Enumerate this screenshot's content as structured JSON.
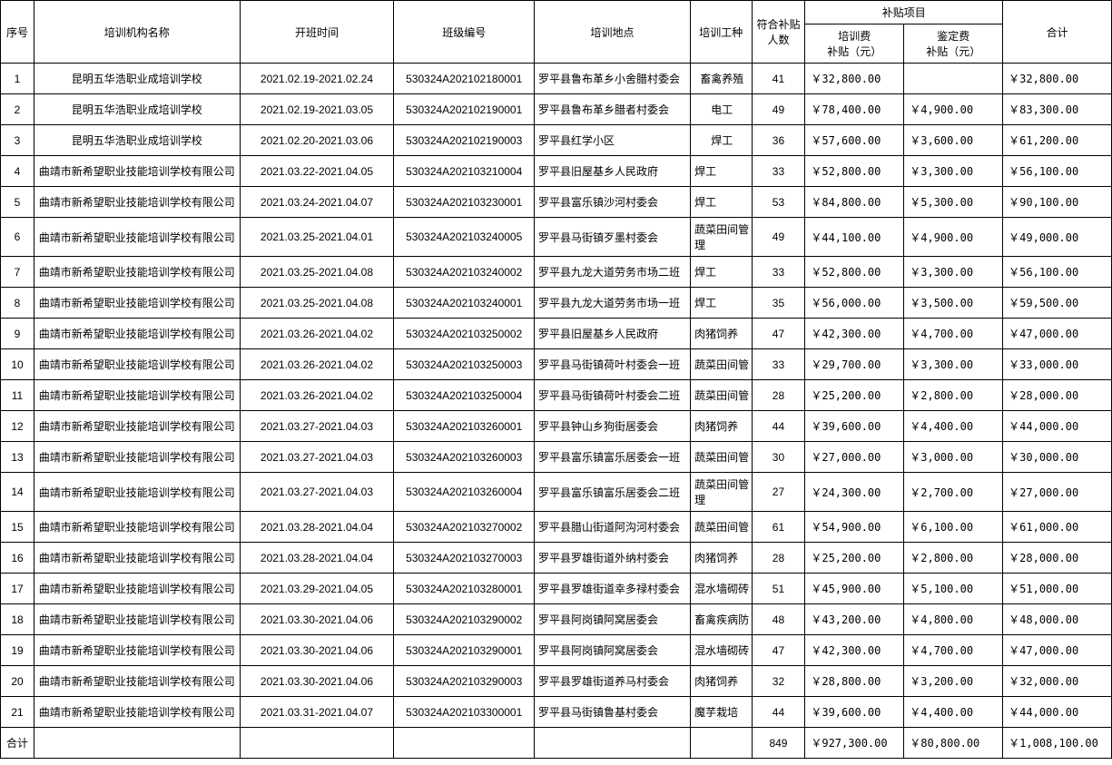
{
  "headers": {
    "seq": "序号",
    "org": "培训机构名称",
    "time": "开班时间",
    "class": "班级编号",
    "loc": "培训地点",
    "job": "培训工种",
    "num": "符合补贴人数",
    "subsidy_group": "补贴项目",
    "fee1": "培训费\n补贴（元）",
    "fee2": "鉴定费\n补贴（元）",
    "total": "合计"
  },
  "footer_label": "合计",
  "footer": {
    "num": "849",
    "fee1": "￥927,300.00",
    "fee2": "￥80,800.00",
    "total": "￥1,008,100.00"
  },
  "rows": [
    {
      "seq": "1",
      "org": "昆明五华浩职业成培训学校",
      "time": "2021.02.19-2021.02.24",
      "class": "530324A202102180001",
      "loc": "罗平县鲁布革乡小舍腊村委会",
      "job": "畜禽养殖",
      "job_center": true,
      "num": "41",
      "fee1": "￥32,800.00",
      "fee2": "",
      "total": "￥32,800.00"
    },
    {
      "seq": "2",
      "org": "昆明五华浩职业成培训学校",
      "time": "2021.02.19-2021.03.05",
      "class": "530324A202102190001",
      "loc": "罗平县鲁布革乡腊者村委会",
      "job": "电工",
      "job_center": true,
      "num": "49",
      "fee1": "￥78,400.00",
      "fee2": "￥4,900.00",
      "total": "￥83,300.00"
    },
    {
      "seq": "3",
      "org": "昆明五华浩职业成培训学校",
      "time": "2021.02.20-2021.03.06",
      "class": "530324A202102190003",
      "loc": "罗平县红学小区",
      "job": "焊工",
      "job_center": true,
      "num": "36",
      "fee1": "￥57,600.00",
      "fee2": "￥3,600.00",
      "total": "￥61,200.00"
    },
    {
      "seq": "4",
      "org": "曲靖市新希望职业技能培训学校有限公司",
      "time": "2021.03.22-2021.04.05",
      "class": "530324A202103210004",
      "loc": "罗平县旧屋基乡人民政府",
      "job": "焊工",
      "num": "33",
      "fee1": "￥52,800.00",
      "fee2": "￥3,300.00",
      "total": "￥56,100.00"
    },
    {
      "seq": "5",
      "org": "曲靖市新希望职业技能培训学校有限公司",
      "time": "2021.03.24-2021.04.07",
      "class": "530324A202103230001",
      "loc": "罗平县富乐镇沙河村委会",
      "job": "焊工",
      "num": "53",
      "fee1": "￥84,800.00",
      "fee2": "￥5,300.00",
      "total": "￥90,100.00"
    },
    {
      "seq": "6",
      "org": "曲靖市新希望职业技能培训学校有限公司",
      "time": "2021.03.25-2021.04.01",
      "class": "530324A202103240005",
      "loc": "罗平县马街镇歹墨村委会",
      "job": "蔬菜田间管理",
      "num": "49",
      "fee1": "￥44,100.00",
      "fee2": "￥4,900.00",
      "total": "￥49,000.00"
    },
    {
      "seq": "7",
      "org": "曲靖市新希望职业技能培训学校有限公司",
      "time": "2021.03.25-2021.04.08",
      "class": "530324A202103240002",
      "loc": "罗平县九龙大道劳务市场二班",
      "job": "焊工",
      "num": "33",
      "fee1": "￥52,800.00",
      "fee2": "￥3,300.00",
      "total": "￥56,100.00"
    },
    {
      "seq": "8",
      "org": "曲靖市新希望职业技能培训学校有限公司",
      "time": "2021.03.25-2021.04.08",
      "class": "530324A202103240001",
      "loc": "罗平县九龙大道劳务市场一班",
      "job": "焊工",
      "num": "35",
      "fee1": "￥56,000.00",
      "fee2": "￥3,500.00",
      "total": "￥59,500.00"
    },
    {
      "seq": "9",
      "org": "曲靖市新希望职业技能培训学校有限公司",
      "time": "2021.03.26-2021.04.02",
      "class": "530324A202103250002",
      "loc": "罗平县旧屋基乡人民政府",
      "job": "肉猪饲养",
      "num": "47",
      "fee1": "￥42,300.00",
      "fee2": "￥4,700.00",
      "total": "￥47,000.00"
    },
    {
      "seq": "10",
      "org": "曲靖市新希望职业技能培训学校有限公司",
      "time": "2021.03.26-2021.04.02",
      "class": "530324A202103250003",
      "loc": "罗平县马街镇荷叶村委会一班",
      "job": "蔬菜田间管",
      "num": "33",
      "fee1": "￥29,700.00",
      "fee2": "￥3,300.00",
      "total": "￥33,000.00"
    },
    {
      "seq": "11",
      "org": "曲靖市新希望职业技能培训学校有限公司",
      "time": "2021.03.26-2021.04.02",
      "class": "530324A202103250004",
      "loc": "罗平县马街镇荷叶村委会二班",
      "job": "蔬菜田间管",
      "num": "28",
      "fee1": "￥25,200.00",
      "fee2": "￥2,800.00",
      "total": "￥28,000.00"
    },
    {
      "seq": "12",
      "org": "曲靖市新希望职业技能培训学校有限公司",
      "time": "2021.03.27-2021.04.03",
      "class": "530324A202103260001",
      "loc": "罗平县钟山乡狗街居委会",
      "job": "肉猪饲养",
      "num": "44",
      "fee1": "￥39,600.00",
      "fee2": "￥4,400.00",
      "total": "￥44,000.00"
    },
    {
      "seq": "13",
      "org": "曲靖市新希望职业技能培训学校有限公司",
      "time": "2021.03.27-2021.04.03",
      "class": "530324A202103260003",
      "loc": "罗平县富乐镇富乐居委会一班",
      "job": "蔬菜田间管",
      "num": "30",
      "fee1": "￥27,000.00",
      "fee2": "￥3,000.00",
      "total": "￥30,000.00"
    },
    {
      "seq": "14",
      "org": "曲靖市新希望职业技能培训学校有限公司",
      "time": "2021.03.27-2021.04.03",
      "class": "530324A202103260004",
      "loc": "罗平县富乐镇富乐居委会二班",
      "job": "蔬菜田间管理",
      "num": "27",
      "fee1": "￥24,300.00",
      "fee2": "￥2,700.00",
      "total": "￥27,000.00"
    },
    {
      "seq": "15",
      "org": "曲靖市新希望职业技能培训学校有限公司",
      "time": "2021.03.28-2021.04.04",
      "class": "530324A202103270002",
      "loc": "罗平县腊山街道阿沟河村委会",
      "job": "蔬菜田间管",
      "num": "61",
      "fee1": "￥54,900.00",
      "fee2": "￥6,100.00",
      "total": "￥61,000.00"
    },
    {
      "seq": "16",
      "org": "曲靖市新希望职业技能培训学校有限公司",
      "time": "2021.03.28-2021.04.04",
      "class": "530324A202103270003",
      "loc": "罗平县罗雄街道外纳村委会",
      "job": "肉猪饲养",
      "num": "28",
      "fee1": "￥25,200.00",
      "fee2": "￥2,800.00",
      "total": "￥28,000.00"
    },
    {
      "seq": "17",
      "org": "曲靖市新希望职业技能培训学校有限公司",
      "time": "2021.03.29-2021.04.05",
      "class": "530324A202103280001",
      "loc": "罗平县罗雄街道幸多禄村委会",
      "job": "混水墙砌砖",
      "num": "51",
      "fee1": "￥45,900.00",
      "fee2": "￥5,100.00",
      "total": "￥51,000.00"
    },
    {
      "seq": "18",
      "org": "曲靖市新希望职业技能培训学校有限公司",
      "time": "2021.03.30-2021.04.06",
      "class": "530324A202103290002",
      "loc": "罗平县阿岗镇阿窝居委会",
      "job": "畜禽疾病防",
      "num": "48",
      "fee1": "￥43,200.00",
      "fee2": "￥4,800.00",
      "total": "￥48,000.00"
    },
    {
      "seq": "19",
      "org": "曲靖市新希望职业技能培训学校有限公司",
      "time": "2021.03.30-2021.04.06",
      "class": "530324A202103290001",
      "loc": "罗平县阿岗镇阿窝居委会",
      "job": "混水墙砌砖",
      "num": "47",
      "fee1": "￥42,300.00",
      "fee2": "￥4,700.00",
      "total": "￥47,000.00"
    },
    {
      "seq": "20",
      "org": "曲靖市新希望职业技能培训学校有限公司",
      "time": "2021.03.30-2021.04.06",
      "class": "530324A202103290003",
      "loc": "罗平县罗雄街道养马村委会",
      "job": "肉猪饲养",
      "num": "32",
      "fee1": "￥28,800.00",
      "fee2": "￥3,200.00",
      "total": "￥32,000.00"
    },
    {
      "seq": "21",
      "org": "曲靖市新希望职业技能培训学校有限公司",
      "time": "2021.03.31-2021.04.07",
      "class": "530324A202103300001",
      "loc": "罗平县马街镇鲁基村委会",
      "job": "魔芋栽培",
      "num": "44",
      "fee1": "￥39,600.00",
      "fee2": "￥4,400.00",
      "total": "￥44,000.00"
    }
  ]
}
